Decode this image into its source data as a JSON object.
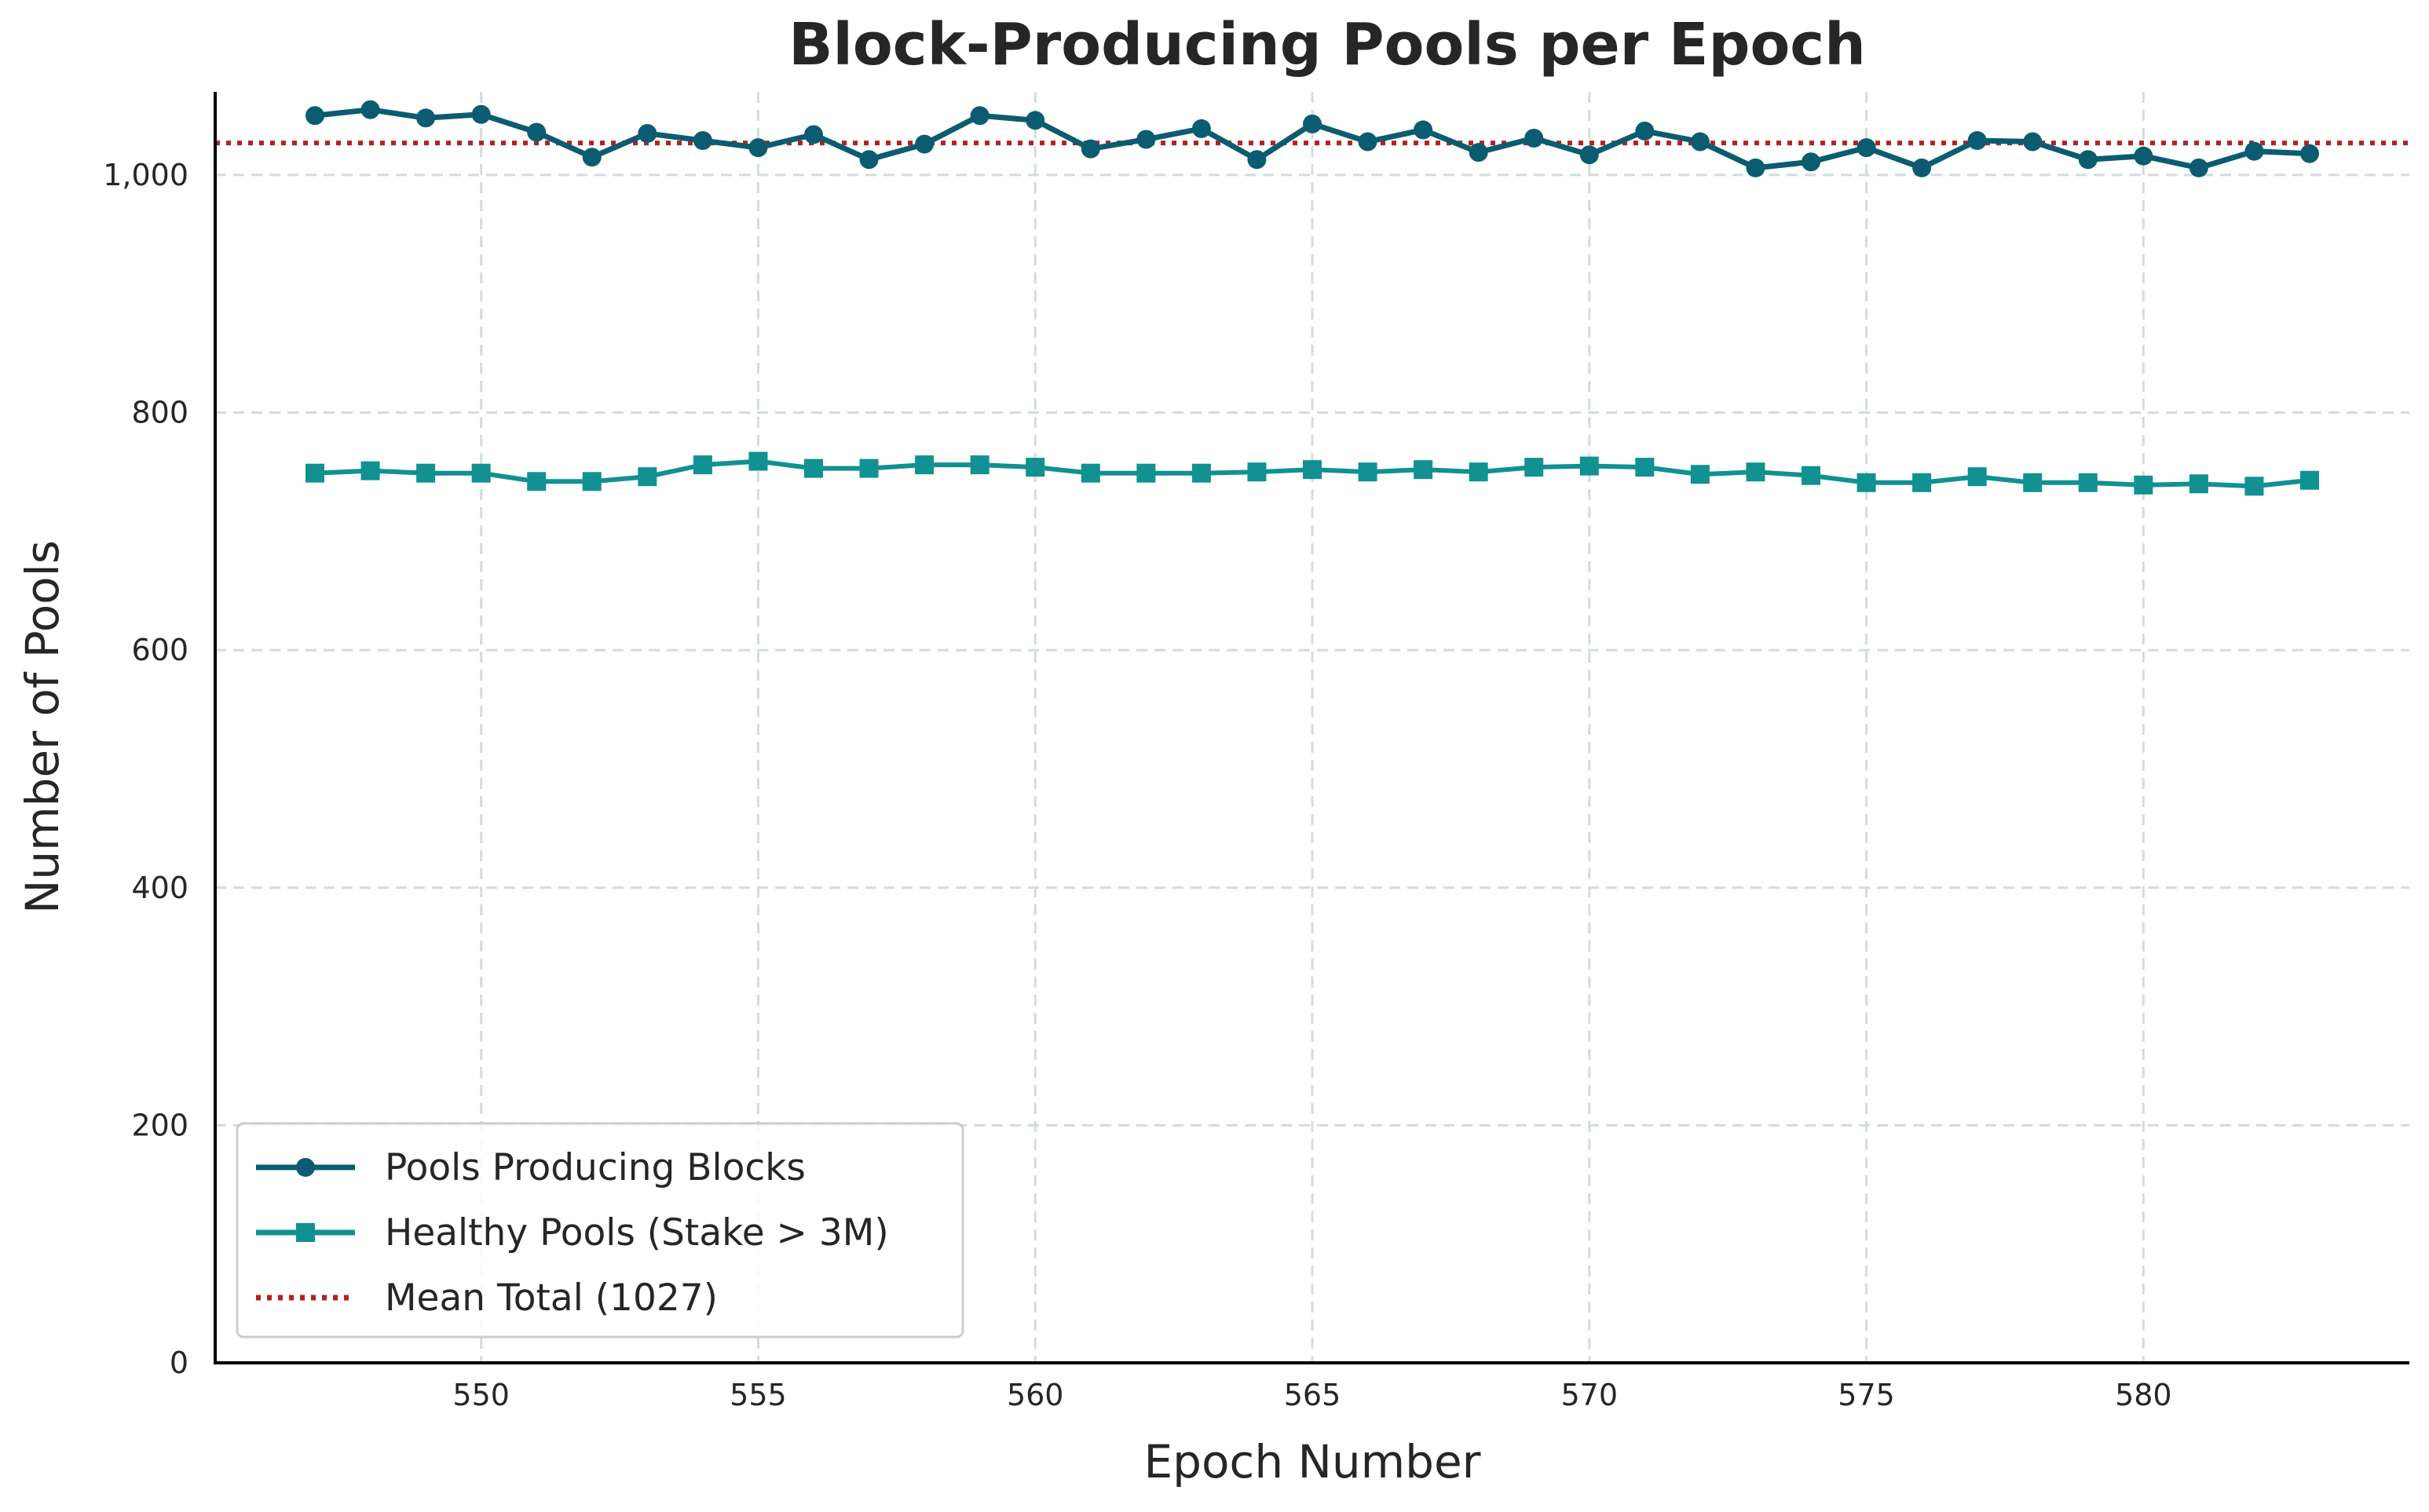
{
  "chart_data": {
    "type": "line",
    "title": "Block-Producing Pools per Epoch",
    "xlabel": "Epoch Number",
    "ylabel": "Number of Pools",
    "xlim": [
      545.2,
      584.8
    ],
    "ylim": [
      0,
      1070
    ],
    "xticks": [
      550,
      555,
      560,
      565,
      570,
      575,
      580
    ],
    "xtick_labels": [
      "550",
      "555",
      "560",
      "565",
      "570",
      "575",
      "580"
    ],
    "yticks": [
      0,
      200,
      400,
      600,
      800,
      1000
    ],
    "ytick_labels": [
      "0",
      "200",
      "400",
      "600",
      "800",
      "1,000"
    ],
    "grid": true,
    "legend_position": "lower-left",
    "x": [
      547,
      548,
      549,
      550,
      551,
      552,
      553,
      554,
      555,
      556,
      557,
      558,
      559,
      560,
      561,
      562,
      563,
      564,
      565,
      566,
      567,
      568,
      569,
      570,
      571,
      572,
      573,
      574,
      575,
      576,
      577,
      578,
      579,
      580,
      581,
      582,
      583
    ],
    "series": [
      {
        "name": "Pools Producing Blocks",
        "color": "#0b5c70",
        "marker": "circle",
        "style": "solid",
        "values": [
          1050,
          1055,
          1048,
          1051,
          1036,
          1015,
          1035,
          1029,
          1023,
          1034,
          1013,
          1026,
          1050,
          1046,
          1022,
          1030,
          1039,
          1013,
          1043,
          1028,
          1038,
          1019,
          1031,
          1017,
          1037,
          1028,
          1006,
          1011,
          1023,
          1006,
          1029,
          1028,
          1013,
          1016,
          1006,
          1020,
          1018
        ]
      },
      {
        "name": "Healthy Pools (Stake > 3M)",
        "color": "#119191",
        "marker": "square",
        "style": "solid",
        "values": [
          749,
          751,
          749,
          749,
          742,
          742,
          746,
          756,
          759,
          753,
          753,
          756,
          756,
          754,
          749,
          749,
          749,
          750,
          752,
          750,
          752,
          750,
          754,
          755,
          754,
          748,
          750,
          747,
          741,
          741,
          746,
          741,
          741,
          739,
          740,
          738,
          743
        ]
      }
    ],
    "reference_line": {
      "name": "Mean Total (1027)",
      "value": 1027,
      "color": "#b22222",
      "style": "dotted"
    }
  }
}
